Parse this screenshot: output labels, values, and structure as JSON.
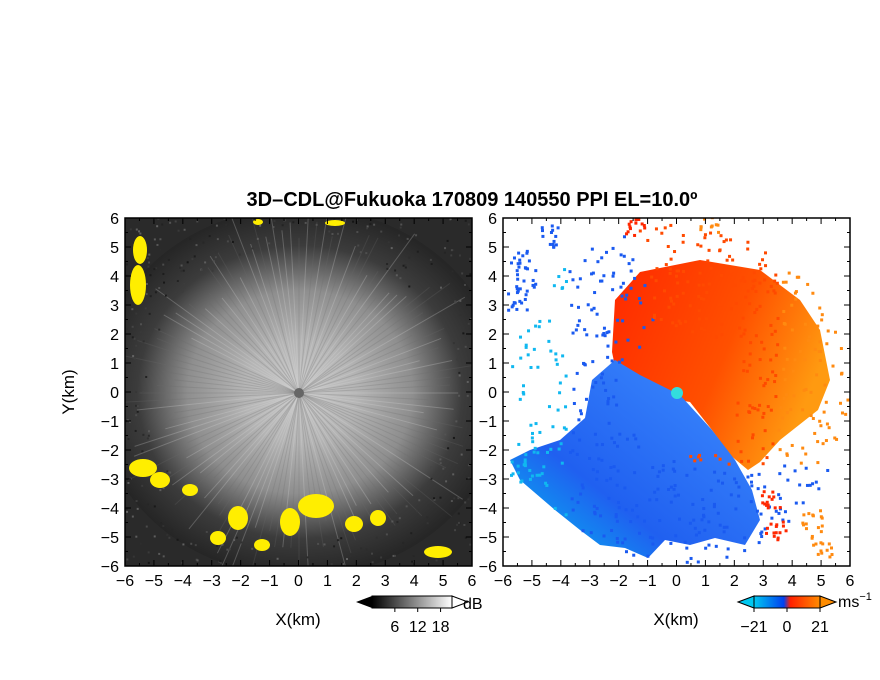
{
  "figure": {
    "title": "3D–CDL@Fukuoka 170809 140550 PPI EL=10.0º"
  },
  "chart_data": [
    {
      "type": "heatmap",
      "panel": "reflectivity",
      "xlabel": "X(km)",
      "ylabel": "Y(km)",
      "xlim": [
        -6,
        6
      ],
      "ylim": [
        -6,
        6
      ],
      "x_ticks": [
        -6,
        -5,
        -4,
        -3,
        -2,
        -1,
        0,
        1,
        2,
        3,
        4,
        5,
        6
      ],
      "y_ticks": [
        -6,
        -5,
        -4,
        -3,
        -2,
        -1,
        0,
        1,
        2,
        3,
        4,
        5,
        6
      ],
      "x_tick_labels": [
        "−6",
        "−5",
        "−4",
        "−3",
        "−2",
        "−1",
        "0",
        "1",
        "2",
        "3",
        "4",
        "5",
        "6"
      ],
      "y_tick_labels": [
        "−6",
        "−5",
        "−4",
        "−3",
        "−2",
        "−1",
        "0",
        "1",
        "2",
        "3",
        "4",
        "5",
        "6"
      ],
      "colorbar": {
        "unit": "dB",
        "ticks": [
          6,
          12,
          18
        ],
        "tick_labels": [
          "6",
          "12",
          "18"
        ],
        "range": [
          0,
          21
        ],
        "colors": [
          "#000000",
          "#ffffff"
        ]
      },
      "highlight_color": "#ffee00",
      "field": "bright core near radar fading outward, high-echo patches along lower and left edges"
    },
    {
      "type": "heatmap",
      "panel": "velocity",
      "xlabel": "X(km)",
      "xlim": [
        -6,
        6
      ],
      "ylim": [
        -6,
        6
      ],
      "x_ticks": [
        -6,
        -5,
        -4,
        -3,
        -2,
        -1,
        0,
        1,
        2,
        3,
        4,
        5,
        6
      ],
      "y_ticks": [
        -6,
        -5,
        -4,
        -3,
        -2,
        -1,
        0,
        1,
        2,
        3,
        4,
        5,
        6
      ],
      "x_tick_labels": [
        "−6",
        "−5",
        "−4",
        "−3",
        "−2",
        "−1",
        "0",
        "1",
        "2",
        "3",
        "4",
        "5",
        "6"
      ],
      "y_tick_labels": [
        "−6",
        "−5",
        "−4",
        "−3",
        "−2",
        "−1",
        "0",
        "1",
        "2",
        "3",
        "4",
        "5",
        "6"
      ],
      "colorbar": {
        "unit": "ms",
        "unit_exp": "−1",
        "ticks": [
          -21,
          0,
          21
        ],
        "tick_labels": [
          "−21",
          "0",
          "21"
        ],
        "range": [
          -21,
          21
        ],
        "colors": [
          "#00c8f0",
          "#0040f0",
          "#ff2000",
          "#ff8c00"
        ]
      },
      "field": "negative (blue) velocities to lower-left, positive (red/orange) to upper-right, radar at origin"
    }
  ]
}
